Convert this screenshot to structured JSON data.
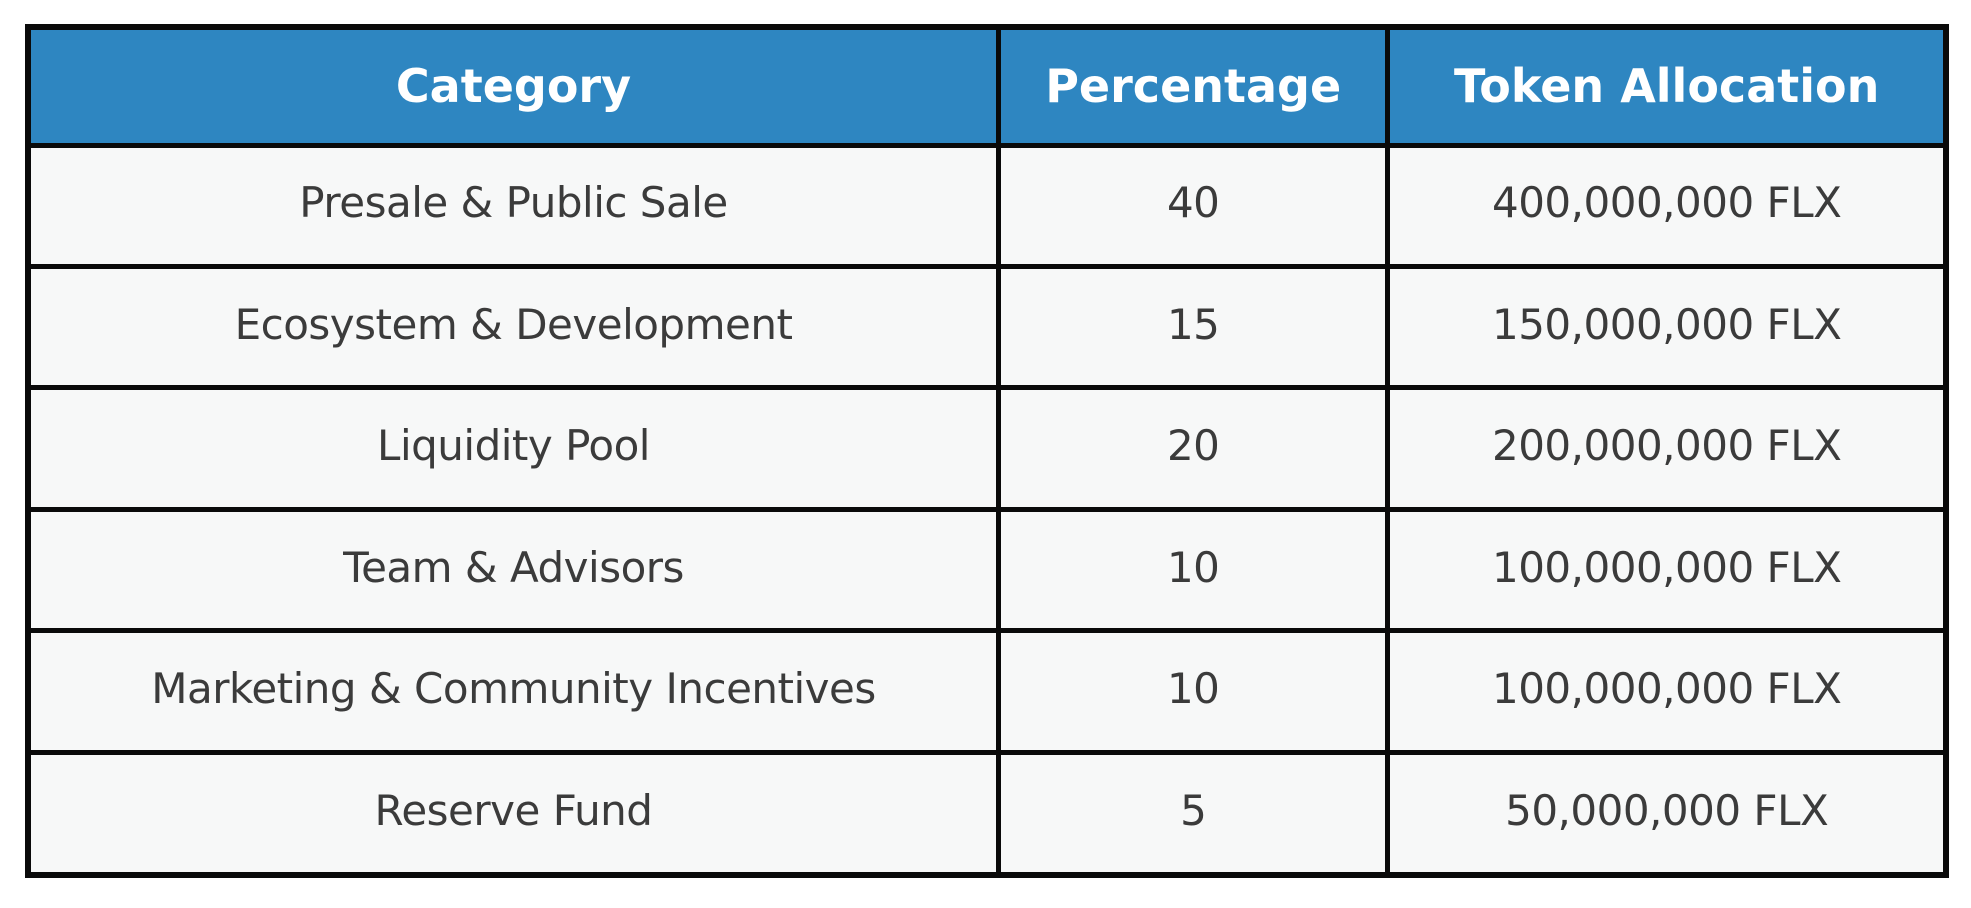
{
  "table": {
    "columns": [
      {
        "label": "Category"
      },
      {
        "label": "Percentage"
      },
      {
        "label": "Token Allocation"
      }
    ],
    "rows": [
      {
        "category": "Presale & Public Sale",
        "percentage": "40",
        "allocation": "400,000,000 FLX"
      },
      {
        "category": "Ecosystem & Development",
        "percentage": "15",
        "allocation": "150,000,000 FLX"
      },
      {
        "category": "Liquidity Pool",
        "percentage": "20",
        "allocation": "200,000,000 FLX"
      },
      {
        "category": "Team & Advisors",
        "percentage": "10",
        "allocation": "100,000,000 FLX"
      },
      {
        "category": "Marketing & Community Incentives",
        "percentage": "10",
        "allocation": "100,000,000 FLX"
      },
      {
        "category": "Reserve Fund",
        "percentage": "5",
        "allocation": "50,000,000 FLX"
      }
    ],
    "colors": {
      "header_bg": "#2E86C1",
      "header_text": "#FFFFFF",
      "cell_bg": "#F7F8F8",
      "cell_text": "#3B3B3B",
      "border": "#0A0A0A",
      "page_bg": "#FFFFFF"
    }
  },
  "chart_data": {
    "type": "table",
    "title": "",
    "columns": [
      "Category",
      "Percentage",
      "Token Allocation"
    ],
    "rows": [
      [
        "Presale & Public Sale",
        40,
        "400,000,000 FLX"
      ],
      [
        "Ecosystem & Development",
        15,
        "150,000,000 FLX"
      ],
      [
        "Liquidity Pool",
        20,
        "200,000,000 FLX"
      ],
      [
        "Team & Advisors",
        10,
        "100,000,000 FLX"
      ],
      [
        "Marketing & Community Incentives",
        10,
        "100,000,000 FLX"
      ],
      [
        "Reserve Fund",
        5,
        "50,000,000 FLX"
      ]
    ],
    "layout": {
      "header_fill": "#2E86C1",
      "grid": "on",
      "cell_alignment": "center"
    }
  }
}
